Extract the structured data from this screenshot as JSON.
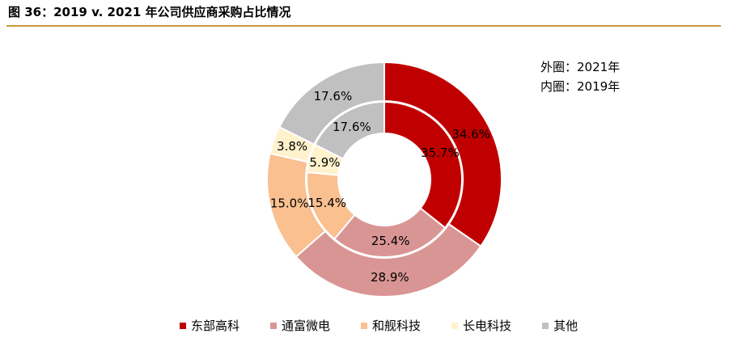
{
  "title": "图 36：2019 v. 2021 年公司供应商采购占比情况",
  "notes": {
    "outer": "外圈：2021年",
    "inner": "内圈：2019年"
  },
  "legend": [
    {
      "label": "东部高科",
      "color": "#c00000"
    },
    {
      "label": "通富微电",
      "color": "#d99594"
    },
    {
      "label": "和舰科技",
      "color": "#fac090"
    },
    {
      "label": "长电科技",
      "color": "#fff2cc"
    },
    {
      "label": "其他",
      "color": "#c0c0c0"
    }
  ],
  "chart_data": {
    "type": "pie",
    "categories": [
      "东部高科",
      "通富微电",
      "和舰科技",
      "长电科技",
      "其他"
    ],
    "colors": [
      "#c00000",
      "#d99594",
      "#fac090",
      "#fff2cc",
      "#c0c0c0"
    ],
    "series": [
      {
        "name": "外圈：2021年",
        "values": [
          34.6,
          28.9,
          15.0,
          3.8,
          17.6
        ],
        "labels": [
          "34.6%",
          "28.9%",
          "15.0%",
          "3.8%",
          "17.6%"
        ]
      },
      {
        "name": "内圈：2019年",
        "values": [
          35.7,
          25.4,
          15.4,
          5.9,
          17.6
        ],
        "labels": [
          "35.7%",
          "25.4%",
          "15.4%",
          "5.9%",
          "17.6%"
        ]
      }
    ]
  }
}
